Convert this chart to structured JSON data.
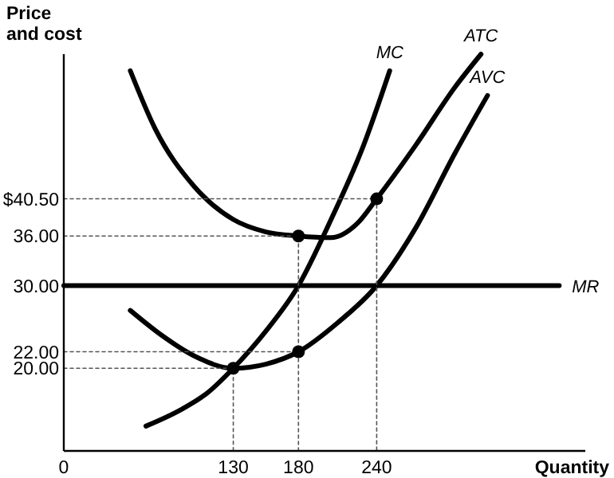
{
  "chart_data": {
    "type": "line",
    "xlabel": "Quantity",
    "ylabel": "Price and cost",
    "xlim": [
      0,
      400
    ],
    "ylim": [
      10,
      58
    ],
    "xticks": [
      0,
      130,
      180,
      240
    ],
    "yticks": [
      {
        "value": 20,
        "label": "20.00"
      },
      {
        "value": 22,
        "label": "22.00"
      },
      {
        "value": 30,
        "label": "30.00"
      },
      {
        "value": 36,
        "label": "36.00"
      },
      {
        "value": 40.5,
        "label": "$40.50"
      }
    ],
    "grid": false,
    "line_style": "solid",
    "series": [
      {
        "name": "MC",
        "color": "#000000",
        "x": [
          63,
          90,
          110,
          130,
          155,
          180,
          205,
          230,
          250
        ],
        "values": [
          13,
          15,
          17,
          20,
          24.5,
          30,
          38,
          47,
          56
        ]
      },
      {
        "name": "ATC",
        "color": "#000000",
        "x": [
          51,
          70,
          100,
          130,
          155,
          180,
          205,
          225,
          240,
          270,
          300,
          320
        ],
        "values": [
          56,
          49,
          42,
          38,
          36.5,
          36,
          35.8,
          37.5,
          40.5,
          47,
          54,
          58
        ]
      },
      {
        "name": "AVC",
        "color": "#000000",
        "x": [
          51,
          75,
          100,
          130,
          155,
          180,
          210,
          240,
          270,
          300,
          325
        ],
        "values": [
          27,
          24,
          21.5,
          20,
          20.5,
          22,
          25.5,
          30,
          37,
          46,
          53
        ]
      },
      {
        "name": "MR",
        "color": "#000000",
        "x": [
          0,
          380
        ],
        "values": [
          30,
          30
        ]
      },
      {
        "type": "line",
        "line_style": "dotted",
        "color": "#555555",
        "x": [
          0,
          130,
          130
        ],
        "values": [
          20,
          20,
          10
        ]
      },
      {
        "type": "line",
        "line_style": "dotted",
        "color": "#555555",
        "x": [
          0,
          180
        ],
        "values": [
          22,
          22
        ]
      },
      {
        "type": "line",
        "line_style": "dotted",
        "color": "#555555",
        "x": [
          0,
          180,
          180
        ],
        "values": [
          36,
          36,
          10
        ]
      },
      {
        "type": "line",
        "line_style": "dotted",
        "color": "#555555",
        "x": [
          0,
          240,
          240
        ],
        "values": [
          40.5,
          40.5,
          10
        ]
      },
      {
        "type": "scatter",
        "color": "#000000",
        "marker": "circle",
        "x": [
          130,
          180,
          180,
          240
        ],
        "values": [
          20,
          22,
          36,
          40.5
        ]
      }
    ]
  }
}
